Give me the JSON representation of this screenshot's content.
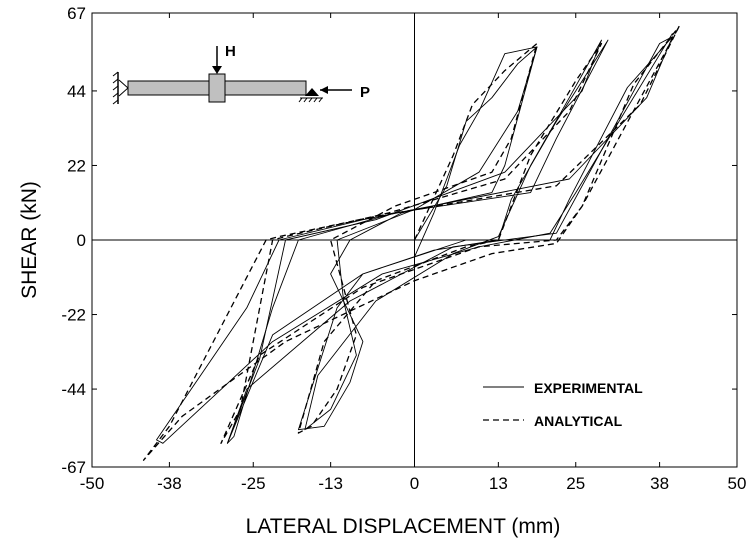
{
  "chart_data": {
    "type": "line",
    "xlabel": "LATERAL DISPLACEMENT (mm)",
    "ylabel": "SHEAR (kN)",
    "xlim": [
      -50,
      50
    ],
    "ylim": [
      -67,
      67
    ],
    "xticks": [
      -50,
      -38,
      -25,
      -13,
      0,
      13,
      25,
      38,
      50
    ],
    "yticks": [
      -67,
      -44,
      -22,
      0,
      22,
      44,
      67
    ],
    "xtick_labels": [
      "-50",
      "-38",
      "-25",
      "-13",
      "0",
      "13",
      "25",
      "38",
      "50"
    ],
    "ytick_labels": [
      "-67",
      "-44",
      "-22",
      "0",
      "22",
      "44",
      "67"
    ],
    "grid": false,
    "zero_lines": true,
    "legend": {
      "placement": "bottom-right",
      "entries": [
        {
          "label": "EXPERIMENTAL",
          "style": "solid"
        },
        {
          "label": "ANALYTICAL",
          "style": "dashed"
        }
      ]
    },
    "inset_labels": {
      "vertical_load": "H",
      "axial_load": "P"
    },
    "series": [
      {
        "name": "EXPERIMENTAL",
        "style": "solid",
        "cycles": [
          [
            [
              0,
              0
            ],
            [
              5,
              16
            ],
            [
              8,
              35
            ],
            [
              12,
              42
            ],
            [
              16,
              52
            ],
            [
              19,
              57
            ],
            [
              14,
              22
            ],
            [
              12,
              14
            ],
            [
              -2,
              8
            ],
            [
              -10,
              0
            ],
            [
              -13,
              -10
            ],
            [
              -8,
              -30
            ],
            [
              -10,
              -42
            ],
            [
              -14,
              -55
            ],
            [
              -18,
              -56
            ],
            [
              -12,
              -20
            ],
            [
              -8,
              -10
            ],
            [
              3,
              -3
            ],
            [
              13,
              0
            ],
            [
              15,
              12
            ],
            [
              22,
              35
            ],
            [
              27,
              50
            ],
            [
              30,
              59
            ],
            [
              22,
              30
            ],
            [
              18,
              14
            ],
            [
              -3,
              8
            ],
            [
              -18,
              0
            ],
            [
              -22,
              -20
            ],
            [
              -28,
              -58
            ],
            [
              -29,
              -60
            ],
            [
              -22,
              -28
            ],
            [
              -8,
              -10
            ],
            [
              8,
              0
            ],
            [
              21,
              0
            ],
            [
              24,
              12
            ],
            [
              33,
              45
            ],
            [
              40,
              60
            ],
            [
              36,
              42
            ],
            [
              24,
              18
            ],
            [
              -8,
              6
            ],
            [
              -21,
              0
            ],
            [
              -26,
              -20
            ],
            [
              -40,
              -59
            ],
            [
              -39,
              -60
            ],
            [
              -22,
              -30
            ],
            [
              -5,
              -10
            ],
            [
              10,
              -2
            ],
            [
              21,
              2
            ],
            [
              25,
              14
            ],
            [
              40,
              61
            ]
          ],
          [
            [
              0,
              -5
            ],
            [
              3,
              8
            ],
            [
              7,
              28
            ],
            [
              10,
              38
            ],
            [
              14,
              55
            ],
            [
              19,
              57
            ],
            [
              16,
              38
            ],
            [
              10,
              20
            ],
            [
              0,
              9
            ],
            [
              -12,
              0
            ],
            [
              -11,
              -18
            ],
            [
              -9,
              -34
            ],
            [
              -13,
              -50
            ],
            [
              -17,
              -56
            ],
            [
              -15,
              -40
            ],
            [
              -6,
              -18
            ],
            [
              6,
              -4
            ],
            [
              13,
              1
            ],
            [
              18,
              22
            ],
            [
              24,
              42
            ],
            [
              29,
              59
            ],
            [
              26,
              44
            ],
            [
              14,
              20
            ],
            [
              -6,
              6
            ],
            [
              -20,
              0
            ],
            [
              -24,
              -35
            ],
            [
              -29,
              -60
            ],
            [
              -26,
              -44
            ],
            [
              -10,
              -18
            ],
            [
              6,
              -2
            ],
            [
              22,
              2
            ],
            [
              30,
              30
            ],
            [
              38,
              58
            ],
            [
              40,
              60
            ]
          ]
        ]
      },
      {
        "name": "ANALYTICAL",
        "style": "dashed",
        "cycles": [
          [
            [
              0,
              0
            ],
            [
              6,
              25
            ],
            [
              9,
              40
            ],
            [
              14,
              50
            ],
            [
              19,
              58
            ],
            [
              15,
              30
            ],
            [
              12,
              20
            ],
            [
              -3,
              10
            ],
            [
              -12,
              1
            ],
            [
              -13,
              0
            ],
            [
              -9,
              -28
            ],
            [
              -12,
              -44
            ],
            [
              -16,
              -55
            ],
            [
              -18,
              -57
            ],
            [
              -14,
              -30
            ],
            [
              -6,
              -12
            ],
            [
              8,
              -2
            ],
            [
              13,
              0
            ],
            [
              18,
              25
            ],
            [
              25,
              47
            ],
            [
              29,
              58
            ],
            [
              24,
              38
            ],
            [
              14,
              18
            ],
            [
              -4,
              8
            ],
            [
              -20,
              1
            ],
            [
              -22,
              0
            ],
            [
              -27,
              -50
            ],
            [
              -30,
              -60
            ],
            [
              -24,
              -34
            ],
            [
              -8,
              -14
            ],
            [
              10,
              -2
            ],
            [
              22,
              0
            ],
            [
              26,
              10
            ],
            [
              34,
              46
            ],
            [
              41,
              63
            ],
            [
              35,
              40
            ],
            [
              22,
              16
            ],
            [
              -6,
              7
            ],
            [
              -21,
              1
            ],
            [
              -23,
              0
            ],
            [
              -38,
              -55
            ],
            [
              -42,
              -65
            ],
            [
              -36,
              -52
            ],
            [
              -20,
              -30
            ],
            [
              0,
              -12
            ],
            [
              12,
              -4
            ],
            [
              22,
              -1
            ],
            [
              26,
              10
            ],
            [
              41,
              63
            ]
          ]
        ]
      }
    ]
  }
}
